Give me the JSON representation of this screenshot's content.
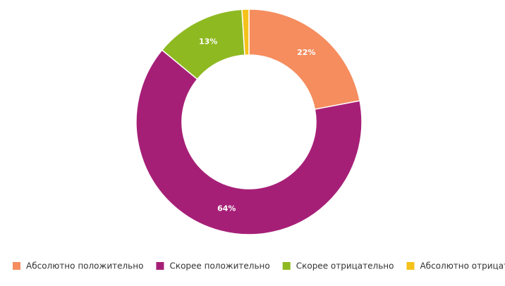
{
  "chart_data": {
    "type": "pie",
    "categories": [
      "Абсолютно положительно",
      "Скорее положительно",
      "Скорее отрицательно",
      "Абсолютно отрицательно"
    ],
    "values": [
      22,
      64,
      13,
      1
    ],
    "value_labels": [
      "22%",
      "64%",
      "13%",
      null
    ],
    "colors": [
      "#f58d5f",
      "#a61f77",
      "#8fb921",
      "#f4c21b"
    ],
    "donut": true,
    "legend": "bottom"
  }
}
